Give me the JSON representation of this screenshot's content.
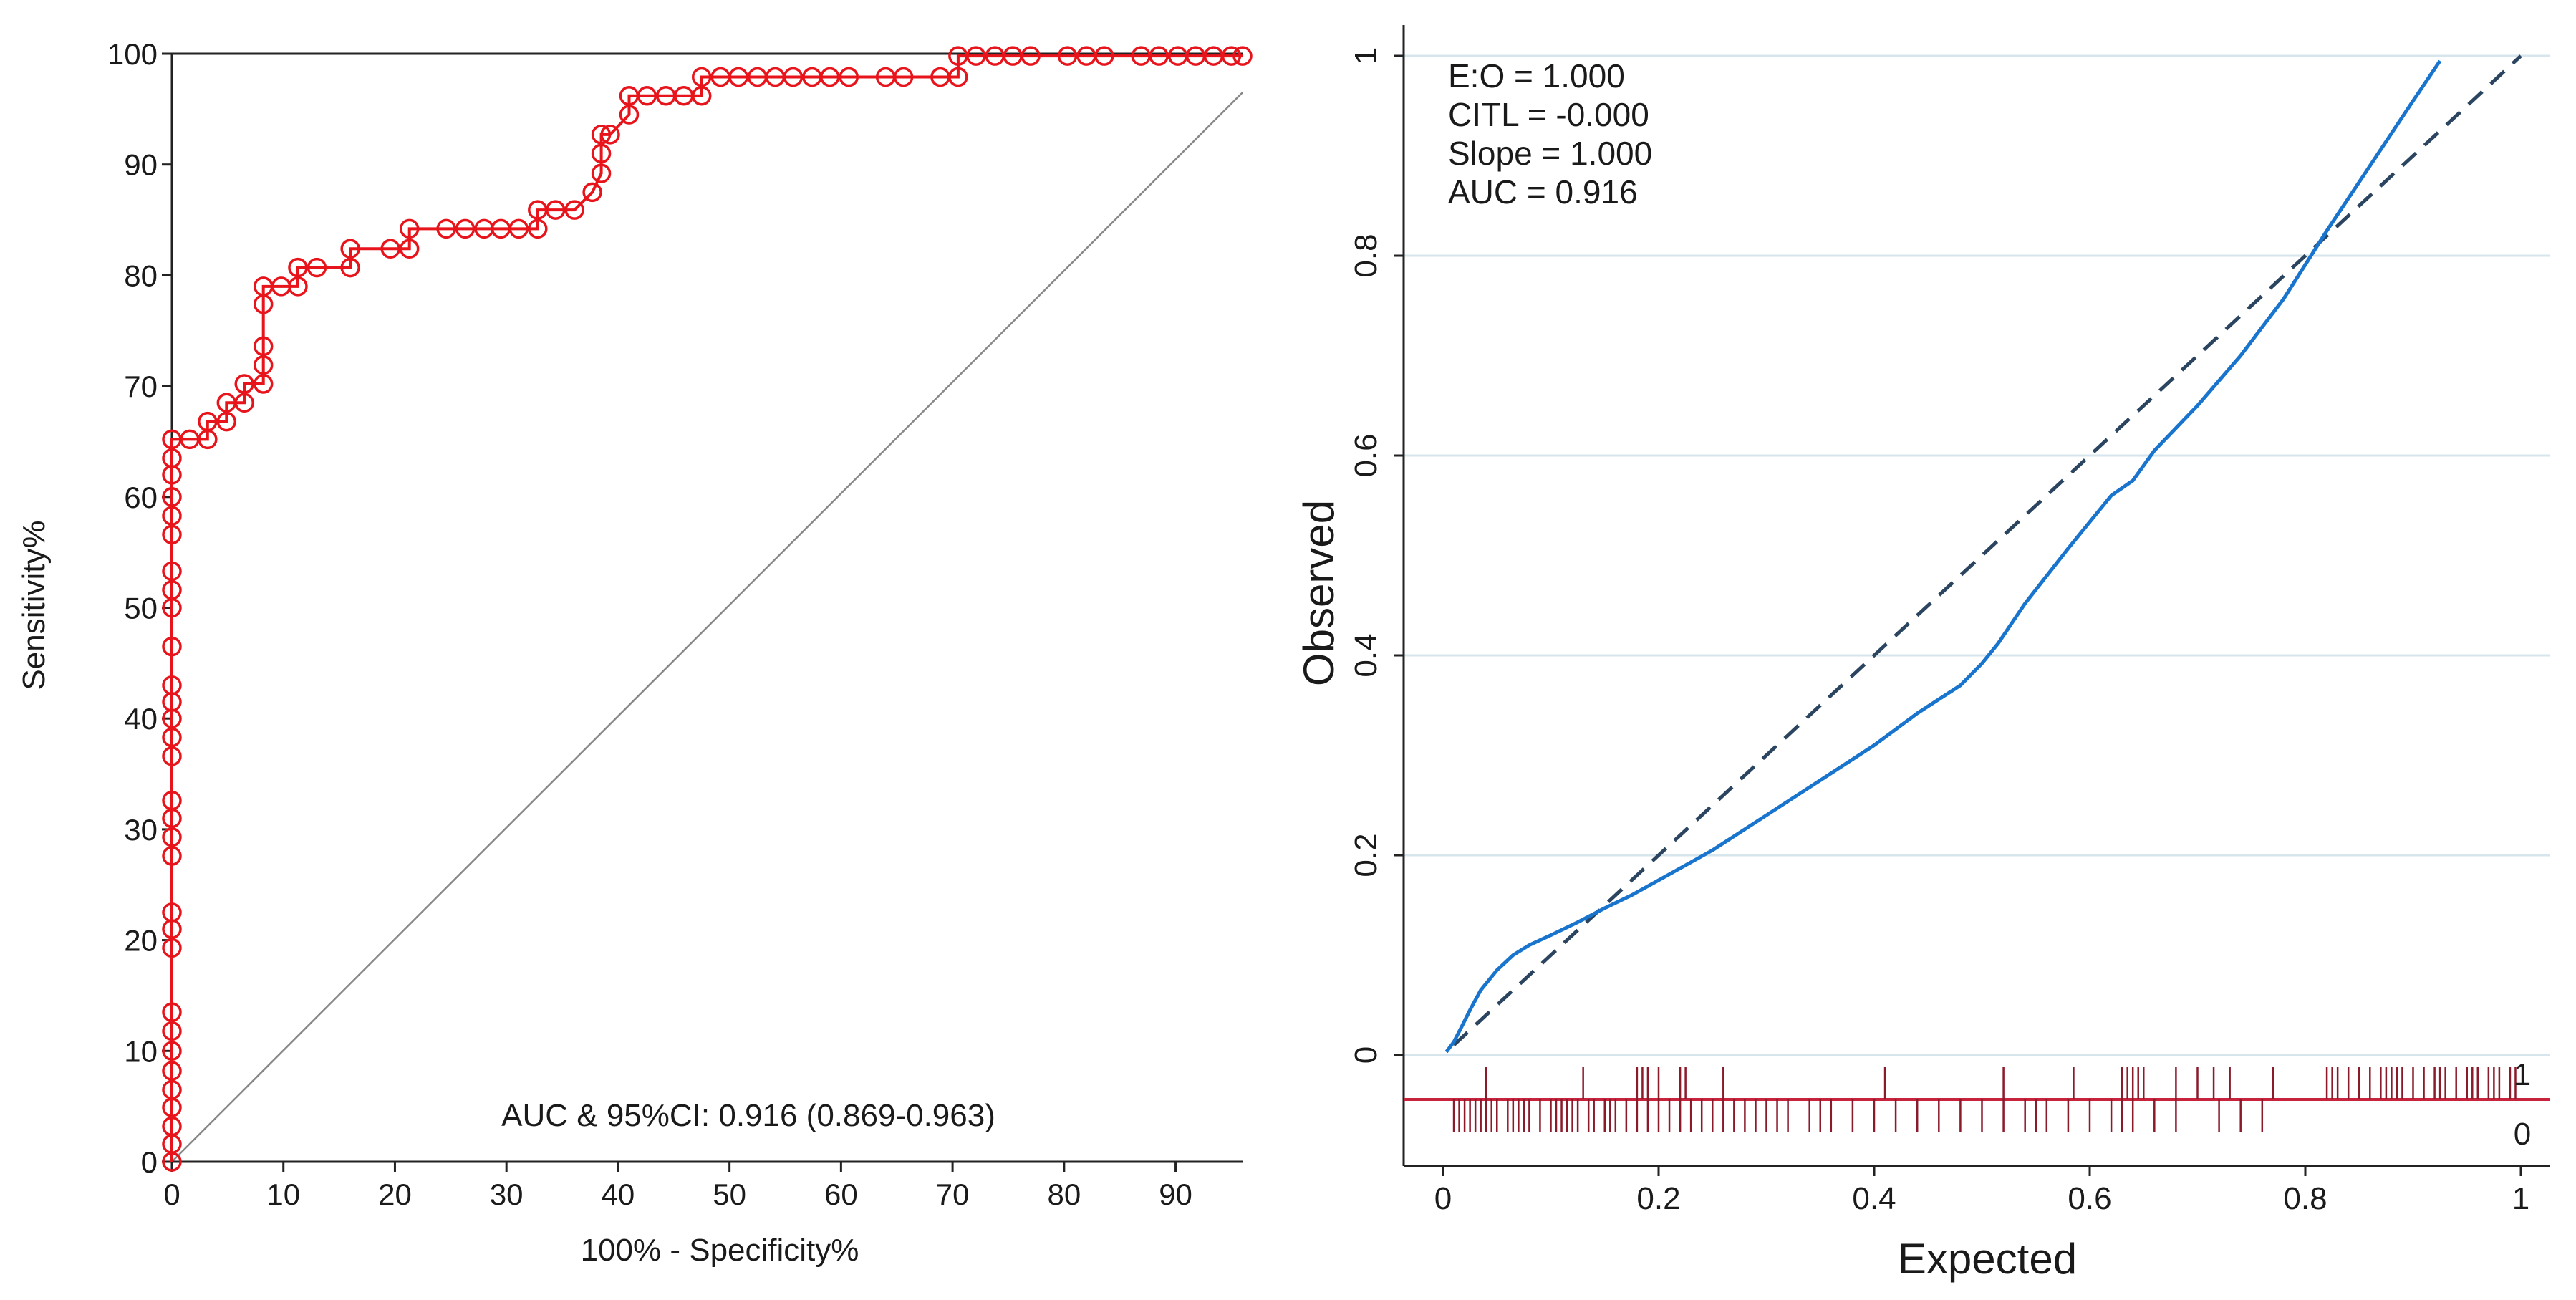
{
  "chart_data": [
    {
      "type": "line",
      "subtype": "roc",
      "xlabel": "100% - Specificity%",
      "ylabel": "Sensitivity%",
      "xlim": [
        0,
        96
      ],
      "ylim": [
        0,
        100
      ],
      "x_ticks": [
        0,
        10,
        20,
        30,
        40,
        50,
        60,
        70,
        80,
        90
      ],
      "y_ticks": [
        0,
        10,
        20,
        30,
        40,
        50,
        60,
        70,
        80,
        90,
        100
      ],
      "annotation": "AUC & 95%CI: 0.916 (0.869-0.963)",
      "reference_line": {
        "from": [
          0,
          0
        ],
        "to": [
          96,
          96.5
        ]
      },
      "color": "#e8141b",
      "series": [
        {
          "name": "ROC",
          "points": [
            [
              0,
              0
            ],
            [
              0,
              1.6
            ],
            [
              0,
              3.2
            ],
            [
              0,
              4.9
            ],
            [
              0,
              6.5
            ],
            [
              0,
              8.2
            ],
            [
              0,
              10
            ],
            [
              0,
              11.8
            ],
            [
              0,
              13.5
            ],
            [
              0,
              19.3
            ],
            [
              0,
              21
            ],
            [
              0,
              22.5
            ],
            [
              0,
              27.6
            ],
            [
              0,
              29.3
            ],
            [
              0,
              31
            ],
            [
              0,
              32.6
            ],
            [
              0,
              36.6
            ],
            [
              0,
              38.3
            ],
            [
              0,
              40
            ],
            [
              0,
              41.5
            ],
            [
              0,
              43
            ],
            [
              0,
              46.5
            ],
            [
              0,
              50
            ],
            [
              0,
              51.6
            ],
            [
              0,
              53.3
            ],
            [
              0,
              56.6
            ],
            [
              0,
              58.3
            ],
            [
              0,
              60
            ],
            [
              0,
              62
            ],
            [
              0,
              63.5
            ],
            [
              0,
              65.2
            ],
            [
              1.6,
              65.2
            ],
            [
              3.2,
              65.2
            ],
            [
              3.2,
              66.8
            ],
            [
              4.9,
              66.8
            ],
            [
              4.9,
              68.5
            ],
            [
              6.5,
              68.5
            ],
            [
              6.5,
              70.2
            ],
            [
              8.2,
              70.2
            ],
            [
              8.2,
              71.9
            ],
            [
              8.2,
              73.6
            ],
            [
              8.2,
              77.4
            ],
            [
              8.2,
              79
            ],
            [
              9.8,
              79
            ],
            [
              11.3,
              79
            ],
            [
              11.3,
              80.7
            ],
            [
              13,
              80.7
            ],
            [
              16,
              80.7
            ],
            [
              16,
              82.4
            ],
            [
              19.6,
              82.4
            ],
            [
              21.3,
              82.4
            ],
            [
              21.3,
              84.2
            ],
            [
              24.6,
              84.2
            ],
            [
              26.3,
              84.2
            ],
            [
              28,
              84.2
            ],
            [
              29.5,
              84.2
            ],
            [
              31.1,
              84.2
            ],
            [
              32.8,
              84.2
            ],
            [
              32.8,
              85.9
            ],
            [
              34.4,
              85.9
            ],
            [
              36.1,
              85.9
            ],
            [
              37.7,
              87.5
            ],
            [
              38.5,
              89.2
            ],
            [
              38.5,
              91
            ],
            [
              38.5,
              92.7
            ],
            [
              39.3,
              92.7
            ],
            [
              41,
              94.5
            ],
            [
              41,
              96.2
            ],
            [
              42.6,
              96.2
            ],
            [
              44.3,
              96.2
            ],
            [
              45.9,
              96.2
            ],
            [
              47.5,
              96.2
            ],
            [
              47.5,
              97.9
            ],
            [
              49.2,
              97.9
            ],
            [
              50.8,
              97.9
            ],
            [
              52.5,
              97.9
            ],
            [
              54.1,
              97.9
            ],
            [
              55.7,
              97.9
            ],
            [
              57.4,
              97.9
            ],
            [
              59,
              97.9
            ],
            [
              60.7,
              97.9
            ],
            [
              64,
              97.9
            ],
            [
              65.6,
              97.9
            ],
            [
              68.9,
              97.9
            ],
            [
              70.5,
              97.9
            ],
            [
              70.5,
              99.8
            ],
            [
              72.1,
              99.8
            ],
            [
              73.8,
              99.8
            ],
            [
              75.4,
              99.8
            ],
            [
              77,
              99.8
            ],
            [
              80.3,
              99.8
            ],
            [
              82,
              99.8
            ],
            [
              83.6,
              99.8
            ],
            [
              86.9,
              99.8
            ],
            [
              88.5,
              99.8
            ],
            [
              90.2,
              99.8
            ],
            [
              91.8,
              99.8
            ],
            [
              93.4,
              99.8
            ],
            [
              95,
              99.8
            ],
            [
              96,
              99.8
            ]
          ]
        }
      ]
    },
    {
      "type": "line",
      "subtype": "calibration",
      "xlabel": "Expected",
      "ylabel": "Observed",
      "xlim": [
        0,
        1
      ],
      "ylim": [
        -0.1,
        1
      ],
      "x_ticks": [
        "0",
        "0.2",
        "0.4",
        "0.6",
        "0.8",
        "1"
      ],
      "y_ticks": [
        "0",
        "0.2",
        "0.4",
        "0.6",
        "0.8",
        "1"
      ],
      "stats": [
        "E:O = 1.000",
        "CITL = -0.000",
        "Slope = 1.000",
        "AUC = 0.916"
      ],
      "rug_labels": [
        "1",
        "0"
      ],
      "series": [
        {
          "name": "Calibration curve",
          "color": "#1874cd",
          "x": [
            0.003,
            0.01,
            0.018,
            0.025,
            0.035,
            0.05,
            0.065,
            0.08,
            0.1,
            0.125,
            0.15,
            0.175,
            0.2,
            0.25,
            0.3,
            0.35,
            0.4,
            0.44,
            0.48,
            0.5,
            0.515,
            0.54,
            0.58,
            0.62,
            0.64,
            0.66,
            0.7,
            0.74,
            0.78,
            0.82,
            0.86,
            0.9,
            0.925
          ],
          "y": [
            0.003,
            0.013,
            0.03,
            0.045,
            0.065,
            0.085,
            0.1,
            0.11,
            0.12,
            0.133,
            0.147,
            0.16,
            0.175,
            0.205,
            0.24,
            0.275,
            0.31,
            0.342,
            0.37,
            0.392,
            0.412,
            0.452,
            0.507,
            0.56,
            0.575,
            0.605,
            0.65,
            0.7,
            0.757,
            0.825,
            0.89,
            0.955,
            0.995
          ]
        },
        {
          "name": "Ideal",
          "color": "#2b4560",
          "style": "dashed",
          "x": [
            0.01,
            1
          ],
          "y": [
            0.01,
            1
          ]
        }
      ],
      "rug_events": [
        0.04,
        0.13,
        0.18,
        0.185,
        0.19,
        0.2,
        0.22,
        0.225,
        0.26,
        0.41,
        0.52,
        0.585,
        0.63,
        0.635,
        0.64,
        0.645,
        0.65,
        0.68,
        0.7,
        0.715,
        0.73,
        0.77,
        0.82,
        0.825,
        0.83,
        0.84,
        0.85,
        0.86,
        0.87,
        0.875,
        0.88,
        0.885,
        0.89,
        0.9,
        0.91,
        0.92,
        0.925,
        0.93,
        0.94,
        0.95,
        0.955,
        0.96,
        0.97,
        0.975,
        0.98,
        0.99,
        0.995
      ],
      "rug_nonevents": [
        0.01,
        0.015,
        0.02,
        0.025,
        0.03,
        0.035,
        0.04,
        0.045,
        0.05,
        0.06,
        0.065,
        0.07,
        0.075,
        0.08,
        0.09,
        0.1,
        0.105,
        0.11,
        0.115,
        0.12,
        0.125,
        0.135,
        0.14,
        0.15,
        0.155,
        0.16,
        0.17,
        0.18,
        0.19,
        0.2,
        0.21,
        0.22,
        0.23,
        0.24,
        0.25,
        0.26,
        0.27,
        0.28,
        0.29,
        0.3,
        0.31,
        0.32,
        0.34,
        0.35,
        0.36,
        0.38,
        0.4,
        0.42,
        0.44,
        0.46,
        0.48,
        0.5,
        0.52,
        0.54,
        0.55,
        0.56,
        0.58,
        0.6,
        0.62,
        0.63,
        0.64,
        0.66,
        0.68,
        0.72,
        0.74,
        0.76
      ]
    }
  ]
}
